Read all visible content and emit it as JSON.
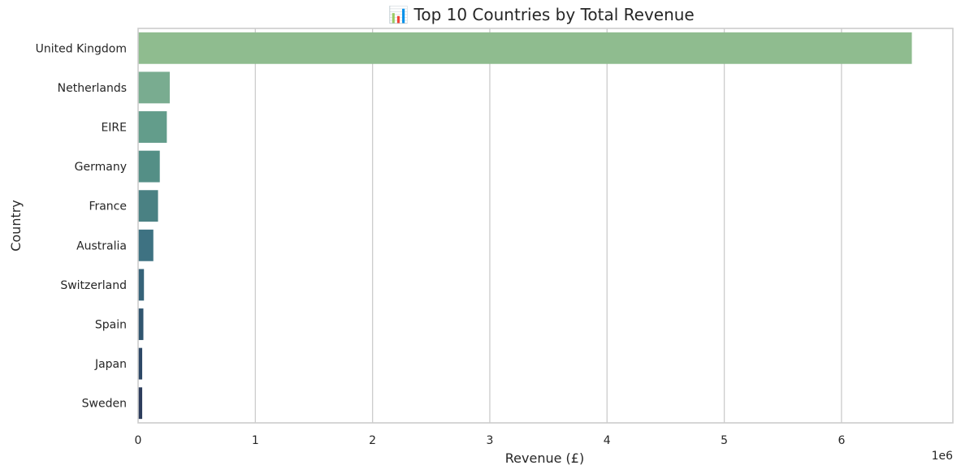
{
  "chart_data": {
    "type": "bar",
    "orientation": "horizontal",
    "title": "📊 Top 10 Countries by Total Revenue",
    "xlabel": "Revenue (£)",
    "ylabel": "Country",
    "x_offset_label": "1e6",
    "xlim": [
      0,
      6.95
    ],
    "x_ticks": [
      0,
      1,
      2,
      3,
      4,
      5,
      6
    ],
    "grid": "vertical",
    "categories": [
      "United Kingdom",
      "Netherlands",
      "EIRE",
      "Germany",
      "France",
      "Australia",
      "Switzerland",
      "Spain",
      "Japan",
      "Sweden"
    ],
    "values": [
      6.6,
      0.27,
      0.245,
      0.185,
      0.17,
      0.13,
      0.05,
      0.045,
      0.035,
      0.035
    ],
    "value_unit": "millions of £ (×1e6)",
    "colors": [
      "#8fbc8f",
      "#79ac90",
      "#639d8b",
      "#548f86",
      "#4a8183",
      "#3e7282",
      "#366379",
      "#31556f",
      "#2d4866",
      "#2d3d5c"
    ]
  }
}
